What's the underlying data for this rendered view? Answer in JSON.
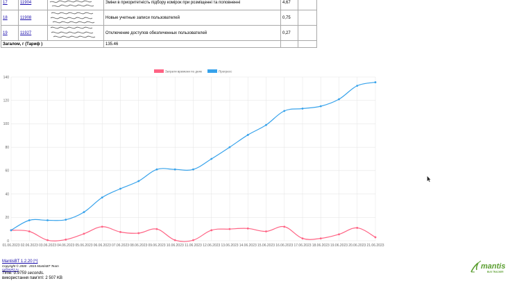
{
  "table": {
    "rows": [
      {
        "num": "17",
        "id": "11904",
        "summary": "Зміни в приоритетність підбору комірок при розміщенні та поповненні",
        "time": "4,67"
      },
      {
        "num": "18",
        "id": "11908",
        "summary": "Новые учетные записи пользователей",
        "time": "0,75"
      },
      {
        "num": "19",
        "id": "11927",
        "summary": "Отключение доступов обезличенных пользователей",
        "time": "0,27"
      }
    ],
    "total_label": "Загалом, г (Тариф )",
    "total_value": "135.46"
  },
  "chart_data": {
    "type": "line",
    "x": [
      "01.06.2023",
      "02.06.2023",
      "03.06.2023",
      "04.06.2023",
      "05.06.2023",
      "06.06.2023",
      "07.06.2023",
      "08.06.2023",
      "09.06.2023",
      "10.06.2023",
      "11.06.2023",
      "12.06.2023",
      "13.06.2023",
      "14.06.2023",
      "15.06.2023",
      "16.06.2023",
      "17.06.2023",
      "18.06.2023",
      "19.06.2023",
      "20.06.2023",
      "21.06.2023"
    ],
    "series": [
      {
        "name": "Затрати времени по днях",
        "color": "#ff6384",
        "values": [
          9,
          8,
          0.5,
          1,
          6,
          12,
          7.5,
          6.5,
          10,
          0.5,
          0.5,
          9,
          10,
          10.5,
          8,
          12,
          2,
          2,
          5.5,
          11,
          3
        ]
      },
      {
        "name": "Прогресс",
        "color": "#36a2eb",
        "values": [
          9,
          17.5,
          17.5,
          18,
          24.5,
          37,
          44.5,
          51,
          61,
          61,
          61,
          70,
          80,
          90.5,
          99,
          111,
          113,
          115,
          121,
          132.5,
          135.5
        ]
      }
    ],
    "yticks": [
      "0",
      "20",
      "40",
      "60",
      "80",
      "100",
      "120",
      "140"
    ],
    "ylim": [
      0,
      140
    ],
    "grid": true,
    "legend": "top-center"
  },
  "footer": {
    "version_link": "MantisBT 1.2.20",
    "version_suffix": " [^]",
    "copyright": "Copyright © 2000 - 2015 MantisBT Team",
    "email": "ru@ppk2.ru",
    "time": "Time: 0.9759 seconds.",
    "memory": "використання пам'яті: 2 507 KB"
  },
  "logo": {
    "text": "mantis",
    "subtext": "BUG TRACKER",
    "color": "#5a9e2f"
  }
}
